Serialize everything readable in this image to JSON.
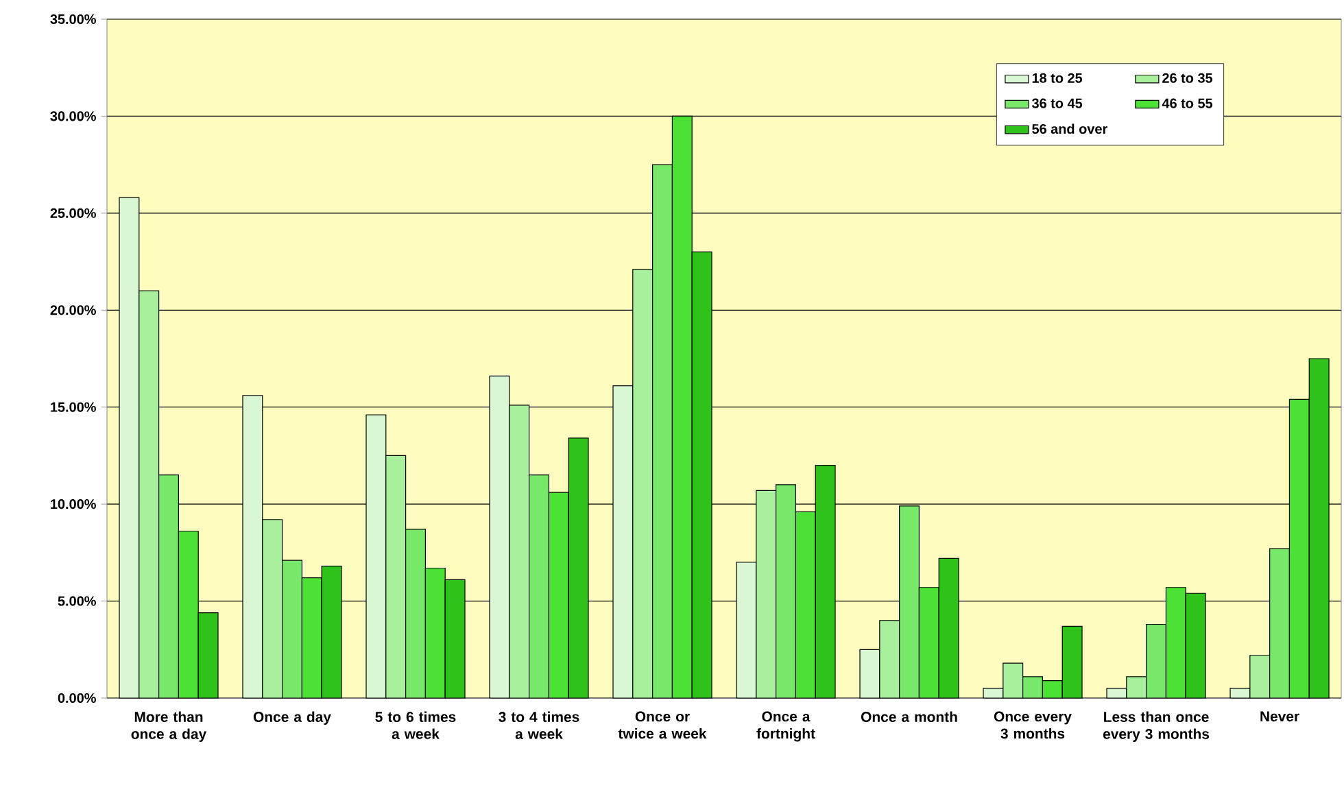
{
  "chart_data": {
    "type": "bar",
    "categories": [
      "More than once a day",
      "Once a day",
      "5 to 6 times a week",
      "3 to 4 times a week",
      "Once or twice a week",
      "Once a fortnight",
      "Once a month",
      "Once every 3 months",
      "Less than once every 3 months",
      "Never"
    ],
    "series": [
      {
        "name": "18 to 25",
        "color": "#d9f7d2",
        "values": [
          25.8,
          15.6,
          14.6,
          16.6,
          16.1,
          7.0,
          2.5,
          0.5,
          0.5,
          0.5
        ]
      },
      {
        "name": "26 to 35",
        "color": "#a8f09c",
        "values": [
          21.0,
          9.2,
          12.5,
          15.1,
          22.1,
          10.7,
          4.0,
          1.8,
          1.1,
          2.2
        ]
      },
      {
        "name": "36 to 45",
        "color": "#78e86a",
        "values": [
          11.5,
          7.1,
          8.7,
          11.5,
          27.5,
          11.0,
          9.9,
          1.1,
          3.8,
          7.7
        ]
      },
      {
        "name": "46 to 55",
        "color": "#4ce235",
        "values": [
          8.6,
          6.2,
          6.7,
          10.6,
          30.0,
          9.6,
          5.7,
          0.9,
          5.7,
          15.4
        ]
      },
      {
        "name": "56 and over",
        "color": "#2fc21a",
        "values": [
          4.4,
          6.8,
          6.1,
          13.4,
          23.0,
          12.0,
          7.2,
          3.7,
          5.4,
          17.5
        ]
      }
    ],
    "ylim": [
      0,
      35
    ],
    "yticks": [
      {
        "value": 0,
        "label": "0.00%"
      },
      {
        "value": 5,
        "label": "5.00%"
      },
      {
        "value": 10,
        "label": "10.00%"
      },
      {
        "value": 15,
        "label": "15.00%"
      },
      {
        "value": 20,
        "label": "20.00%"
      },
      {
        "value": 25,
        "label": "25.00%"
      },
      {
        "value": 30,
        "label": "30.00%"
      },
      {
        "value": 35,
        "label": "35.00%"
      }
    ],
    "grid": "y",
    "legend": "top right"
  }
}
